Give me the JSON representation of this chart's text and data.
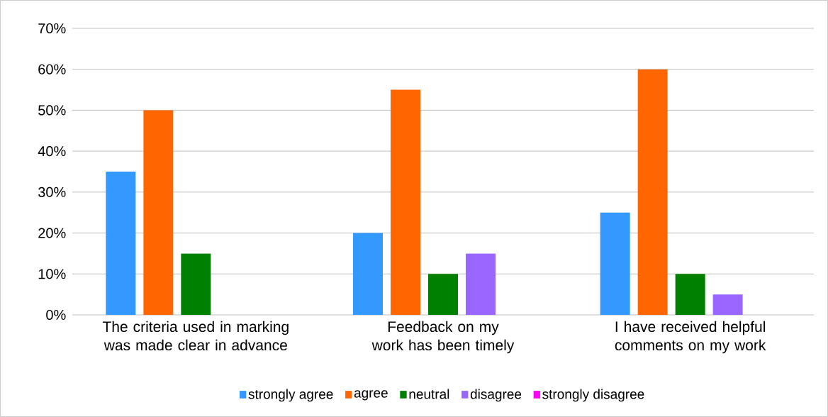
{
  "chart_data": {
    "type": "bar",
    "categories": [
      "The criteria used in marking was made clear in advance",
      "Feedback on my work has been timely",
      "I have received helpful comments on my work"
    ],
    "series": [
      {
        "name": "strongly agree",
        "color": "#3399ff",
        "values": [
          35,
          20,
          25
        ]
      },
      {
        "name": "agree",
        "color": "#ff6600",
        "values": [
          50,
          55,
          60
        ]
      },
      {
        "name": "neutral",
        "color": "#008000",
        "values": [
          15,
          10,
          10
        ]
      },
      {
        "name": "disagree",
        "color": "#9966ff",
        "values": [
          0,
          15,
          5
        ]
      },
      {
        "name": "strongly disagree",
        "color": "#ff00ff",
        "values": [
          0,
          0,
          0
        ]
      }
    ],
    "ylim": [
      0,
      70
    ],
    "yticks": [
      {
        "value": 0,
        "label": "0%"
      },
      {
        "value": 10,
        "label": "10%"
      },
      {
        "value": 20,
        "label": "20%"
      },
      {
        "value": 30,
        "label": "30%"
      },
      {
        "value": 40,
        "label": "40%"
      },
      {
        "value": 50,
        "label": "50%"
      },
      {
        "value": 60,
        "label": "60%"
      },
      {
        "value": 70,
        "label": "70%"
      }
    ],
    "grid": "y",
    "legend": "bottom"
  }
}
